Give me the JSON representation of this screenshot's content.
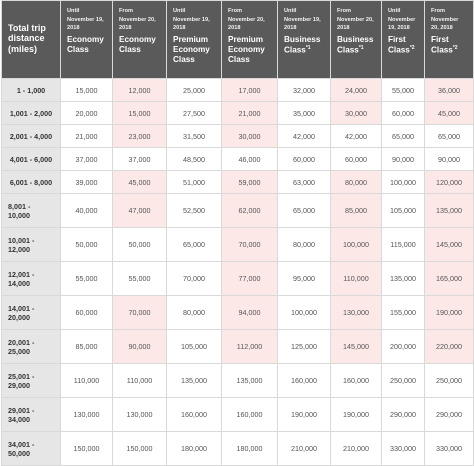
{
  "table": {
    "header": {
      "first": [
        "Total trip",
        "distance",
        "(miles)"
      ],
      "columns": [
        {
          "small": [
            "Until",
            "November 19,",
            "2018"
          ],
          "big": [
            "Economy",
            "Class"
          ],
          "sup": ""
        },
        {
          "small": [
            "From",
            "November 20,",
            "2018"
          ],
          "big": [
            "Economy",
            "Class"
          ],
          "sup": ""
        },
        {
          "small": [
            "Until",
            "November 19,",
            "2018"
          ],
          "big": [
            "Premium",
            "Economy",
            "Class"
          ],
          "sup": ""
        },
        {
          "small": [
            "From",
            "November 20,",
            "2018"
          ],
          "big": [
            "Premium",
            "Economy",
            "Class"
          ],
          "sup": ""
        },
        {
          "small": [
            "Until",
            "November 19,",
            "2018"
          ],
          "big": [
            "Business",
            "Class"
          ],
          "sup": "*1"
        },
        {
          "small": [
            "From",
            "November 20,",
            "2018"
          ],
          "big": [
            "Business",
            "Class"
          ],
          "sup": "*1"
        },
        {
          "small": [
            "Until",
            "November",
            "19, 2018"
          ],
          "big": [
            "First",
            "Class"
          ],
          "sup": "*2"
        },
        {
          "small": [
            "From",
            "November",
            "20, 2018"
          ],
          "big": [
            "First",
            "Class"
          ],
          "sup": "*2"
        }
      ]
    },
    "highlight_color": "#fde8e8",
    "rows": [
      {
        "label": [
          "1 - 1,000"
        ],
        "center": true,
        "values": [
          "15,000",
          "12,000",
          "25,000",
          "17,000",
          "32,000",
          "24,000",
          "55,000",
          "36,000"
        ],
        "hl": [
          false,
          true,
          false,
          true,
          false,
          true,
          false,
          true
        ]
      },
      {
        "label": [
          "1,001 - 2,000"
        ],
        "center": true,
        "values": [
          "20,000",
          "15,000",
          "27,500",
          "21,000",
          "35,000",
          "30,000",
          "60,000",
          "45,000"
        ],
        "hl": [
          false,
          true,
          false,
          true,
          false,
          true,
          false,
          true
        ]
      },
      {
        "label": [
          "2,001 - 4,000"
        ],
        "center": true,
        "values": [
          "21,000",
          "23,000",
          "31,500",
          "30,000",
          "42,000",
          "42,000",
          "65,000",
          "65,000"
        ],
        "hl": [
          false,
          true,
          false,
          true,
          false,
          false,
          false,
          false
        ]
      },
      {
        "label": [
          "4,001 - 6,000"
        ],
        "center": true,
        "values": [
          "37,000",
          "37,000",
          "48,500",
          "46,000",
          "60,000",
          "60,000",
          "90,000",
          "90,000"
        ],
        "hl": [
          false,
          false,
          false,
          false,
          false,
          false,
          false,
          false
        ]
      },
      {
        "label": [
          "6,001 - 8,000"
        ],
        "center": true,
        "values": [
          "39,000",
          "45,000",
          "51,000",
          "59,000",
          "63,000",
          "80,000",
          "100,000",
          "120,000"
        ],
        "hl": [
          false,
          true,
          false,
          true,
          false,
          true,
          false,
          true
        ]
      },
      {
        "label": [
          "8,001 -",
          "10,000"
        ],
        "center": false,
        "values": [
          "40,000",
          "47,000",
          "52,500",
          "62,000",
          "65,000",
          "85,000",
          "105,000",
          "135,000"
        ],
        "hl": [
          false,
          true,
          false,
          true,
          false,
          true,
          false,
          true
        ]
      },
      {
        "label": [
          "10,001 -",
          "12,000"
        ],
        "center": false,
        "values": [
          "50,000",
          "50,000",
          "65,000",
          "70,000",
          "80,000",
          "100,000",
          "115,000",
          "145,000"
        ],
        "hl": [
          false,
          false,
          false,
          true,
          false,
          true,
          false,
          true
        ]
      },
      {
        "label": [
          "12,001 -",
          "14,000"
        ],
        "center": false,
        "values": [
          "55,000",
          "55,000",
          "70,000",
          "77,000",
          "95,000",
          "110,000",
          "135,000",
          "165,000"
        ],
        "hl": [
          false,
          false,
          false,
          true,
          false,
          true,
          false,
          true
        ]
      },
      {
        "label": [
          "14,001 -",
          "20,000"
        ],
        "center": false,
        "values": [
          "60,000",
          "70,000",
          "80,000",
          "94,000",
          "100,000",
          "130,000",
          "155,000",
          "190,000"
        ],
        "hl": [
          false,
          true,
          false,
          true,
          false,
          true,
          false,
          true
        ]
      },
      {
        "label": [
          "20,001 -",
          "25,000"
        ],
        "center": false,
        "values": [
          "85,000",
          "90,000",
          "105,000",
          "112,000",
          "125,000",
          "145,000",
          "200,000",
          "220,000"
        ],
        "hl": [
          false,
          true,
          false,
          true,
          false,
          true,
          false,
          true
        ]
      },
      {
        "label": [
          "25,001 -",
          "29,000"
        ],
        "center": false,
        "values": [
          "110,000",
          "110,000",
          "135,000",
          "135,000",
          "160,000",
          "160,000",
          "250,000",
          "250,000"
        ],
        "hl": [
          false,
          false,
          false,
          false,
          false,
          false,
          false,
          false
        ]
      },
      {
        "label": [
          "29,001 -",
          "34,000"
        ],
        "center": false,
        "values": [
          "130,000",
          "130,000",
          "160,000",
          "160,000",
          "190,000",
          "190,000",
          "290,000",
          "290,000"
        ],
        "hl": [
          false,
          false,
          false,
          false,
          false,
          false,
          false,
          false
        ]
      },
      {
        "label": [
          "34,001 -",
          "50,000"
        ],
        "center": false,
        "values": [
          "150,000",
          "150,000",
          "180,000",
          "180,000",
          "210,000",
          "210,000",
          "330,000",
          "330,000"
        ],
        "hl": [
          false,
          false,
          false,
          false,
          false,
          false,
          false,
          false
        ]
      }
    ]
  }
}
